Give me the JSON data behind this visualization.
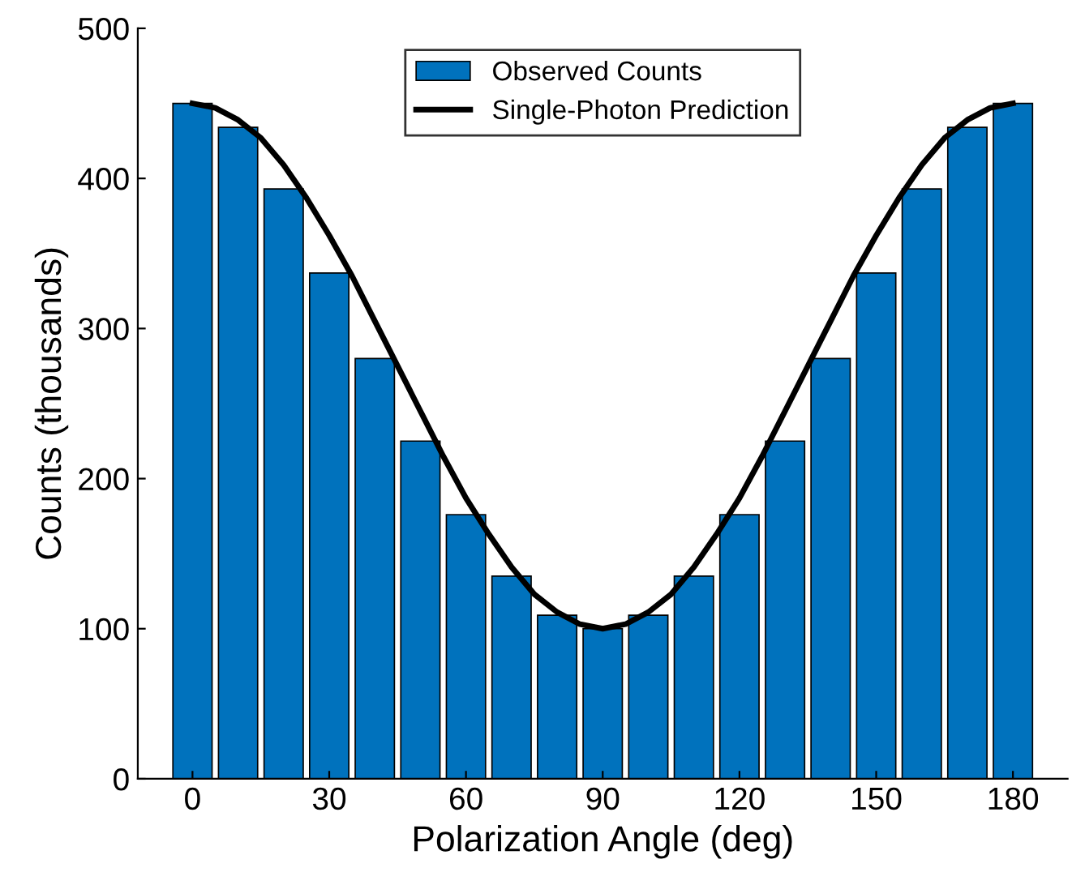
{
  "chart_data": {
    "type": "bar",
    "xlabel": "Polarization Angle (deg)",
    "ylabel": "Counts (thousands)",
    "x": [
      0,
      10,
      20,
      30,
      40,
      50,
      60,
      70,
      80,
      90,
      100,
      110,
      120,
      130,
      140,
      150,
      160,
      170,
      180
    ],
    "series": [
      {
        "name": "Observed Counts",
        "color": "#0072bd",
        "values": [
          450,
          434,
          393,
          337,
          280,
          225,
          176,
          135,
          109,
          100,
          109,
          135,
          176,
          225,
          280,
          337,
          393,
          434,
          450
        ]
      },
      {
        "name": "Single-Photon Prediction",
        "type": "line",
        "color": "#000000",
        "x": [
          0,
          5,
          10,
          15,
          20,
          25,
          30,
          35,
          40,
          45,
          50,
          55,
          60,
          65,
          70,
          75,
          80,
          85,
          90,
          95,
          100,
          105,
          110,
          115,
          120,
          125,
          130,
          135,
          140,
          145,
          150,
          155,
          160,
          165,
          170,
          175,
          180
        ],
        "values": [
          450,
          447,
          439,
          427,
          409,
          387,
          362,
          335,
          305,
          275,
          245,
          215,
          187,
          163,
          141,
          123,
          111,
          103,
          100,
          103,
          111,
          123,
          141,
          163,
          187,
          215,
          245,
          275,
          305,
          335,
          362,
          387,
          409,
          427,
          439,
          447,
          450
        ]
      }
    ],
    "xlim": [
      -12,
      192
    ],
    "xticks": [
      0,
      30,
      60,
      90,
      120,
      150,
      180
    ],
    "ylim": [
      0,
      500
    ],
    "yticks": [
      0,
      100,
      200,
      300,
      400,
      500
    ],
    "grid": false,
    "legend": "top",
    "line_style": "solid",
    "marker": "none"
  }
}
